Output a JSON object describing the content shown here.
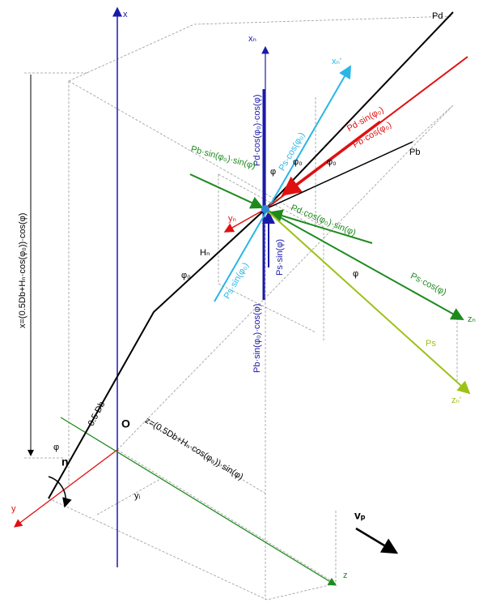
{
  "labels": {
    "x_axis": "x",
    "xn": "xₙ",
    "xn_prime": "xₙ'",
    "pd": "Pd",
    "pb": "Pb",
    "pd_sin": "Pd·sin(φ₀)",
    "pb_cos": "Pb·cos(φ₀)",
    "ps_cos_phi0": "Ps·cos(φ₀)",
    "pd_cos_cos": "Pd·cos(φ₀)·cos(φ)",
    "pb_sin_sin": "Pb·sin(φ₀)·sin(φ)",
    "phi_a": "φ",
    "phi0_a": "φ₀",
    "phi0_b": "φ₀",
    "yn": "yₙ",
    "hn": "Hₙ",
    "phi0_c": "φ₀",
    "pd_cos_sin": "Pd·cos(φ₀)·sin(φ)",
    "ps_sin_phi0": "Ps·sin(φ₀)",
    "pb_sin_cos": "Pb·sin(φ₀)·cos(φ)",
    "ps_sin_phi": "Ps·sin(φ)",
    "phi_b": "φ",
    "ps_cos_phi": "Ps·cos(φ)",
    "zn": "zₙ",
    "ps": "Ps",
    "zn_prime": "zₙ'",
    "x_formula": "x=(0.5Db+Hₙ·cos(φ₀))·cos(φ)",
    "half_db": "0.5 Db",
    "origin": "O",
    "z_formula": "z=(0.5Db+Hₙ·cos(φ₀))·sin(φ)",
    "phi_c": "φ",
    "n": "n",
    "y_axis": "y",
    "yi": "yᵢ",
    "vp": "vₚ",
    "z_axis": "z"
  }
}
